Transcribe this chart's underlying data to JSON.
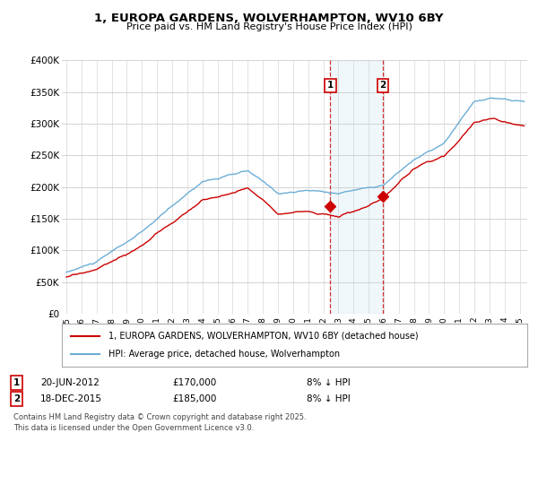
{
  "title": "1, EUROPA GARDENS, WOLVERHAMPTON, WV10 6BY",
  "subtitle": "Price paid vs. HM Land Registry's House Price Index (HPI)",
  "ylabel_ticks": [
    "£0",
    "£50K",
    "£100K",
    "£150K",
    "£200K",
    "£250K",
    "£300K",
    "£350K",
    "£400K"
  ],
  "ylim": [
    0,
    400000
  ],
  "xlim_start": 1994.7,
  "xlim_end": 2025.5,
  "hpi_color": "#6baed6",
  "price_color": "#cc0000",
  "background_color": "#ffffff",
  "plot_bg_color": "#ffffff",
  "grid_color": "#cccccc",
  "sale1_date": 2012.47,
  "sale1_price": 170000,
  "sale1_label": "1",
  "sale2_date": 2015.96,
  "sale2_price": 185000,
  "sale2_label": "2",
  "shade_start": 2012.47,
  "shade_end": 2015.96,
  "legend_line1": "1, EUROPA GARDENS, WOLVERHAMPTON, WV10 6BY (detached house)",
  "legend_line2": "HPI: Average price, detached house, Wolverhampton",
  "footnote_line1": "Contains HM Land Registry data © Crown copyright and database right 2025.",
  "footnote_line2": "This data is licensed under the Open Government Licence v3.0."
}
